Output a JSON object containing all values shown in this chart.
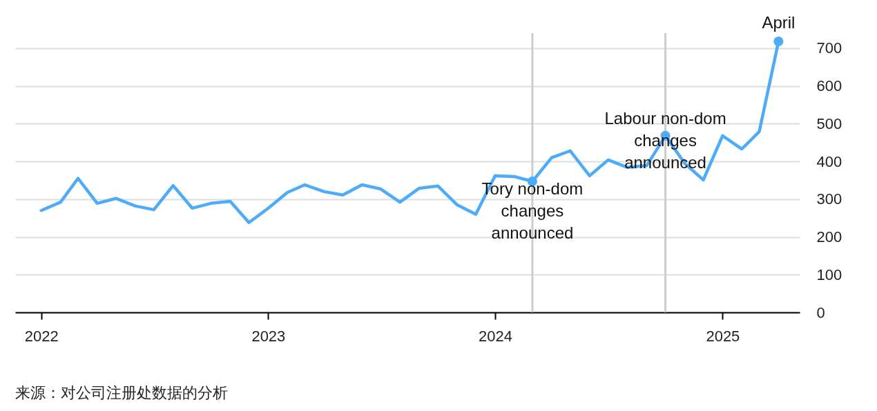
{
  "chart_data": {
    "type": "line",
    "x": [
      "2022-01",
      "2022-02",
      "2022-03",
      "2022-04",
      "2022-05",
      "2022-06",
      "2022-07",
      "2022-08",
      "2022-09",
      "2022-10",
      "2022-11",
      "2022-12",
      "2023-01",
      "2023-02",
      "2023-03",
      "2023-04",
      "2023-05",
      "2023-06",
      "2023-07",
      "2023-08",
      "2023-09",
      "2023-10",
      "2023-11",
      "2023-12",
      "2024-01",
      "2024-02",
      "2024-03",
      "2024-04",
      "2024-05",
      "2024-06",
      "2024-07",
      "2024-08",
      "2024-09",
      "2024-10",
      "2024-11",
      "2024-12",
      "2025-01",
      "2025-02",
      "2025-03",
      "2025-04"
    ],
    "series": [
      {
        "color": "#4dabf7",
        "values": [
          270,
          292,
          355,
          289,
          302,
          282,
          272,
          336,
          276,
          289,
          294,
          238,
          276,
          318,
          338,
          320,
          311,
          338,
          327,
          292,
          329,
          335,
          285,
          260,
          362,
          360,
          347,
          410,
          428,
          362,
          404,
          384,
          389,
          468,
          395,
          351,
          468,
          433,
          479,
          718
        ]
      },
      {
        "type": "scatter",
        "color": "#4dabf7",
        "x": [
          "2024-03",
          "2024-10",
          "2025-04"
        ],
        "values": [
          347,
          468,
          718
        ]
      }
    ],
    "xlim": [
      "2021-11-20",
      "2025-05-05"
    ],
    "xticks": [
      "2022",
      "2023",
      "2024",
      "2025"
    ],
    "ylim": [
      0,
      740
    ],
    "yticks": [
      0,
      100,
      200,
      300,
      400,
      500,
      600,
      700
    ],
    "grid": "y",
    "line_style": "solid",
    "ref_lines": [
      {
        "axis": "x",
        "value": "2024-03",
        "color": "#cccccc"
      },
      {
        "axis": "x",
        "value": "2024-10",
        "color": "#cccccc"
      }
    ],
    "annotations": [
      {
        "text": "April",
        "x": "2025-04",
        "y": 718
      },
      {
        "text": "Labour non-dom\nchanges\nannounced",
        "x": "2024-10",
        "y": 468
      },
      {
        "text": "Tory non-dom\nchanges\nannounced",
        "x": "2024-03",
        "y": 347
      },
      "来源：对公司注册处数据的分析"
    ]
  }
}
